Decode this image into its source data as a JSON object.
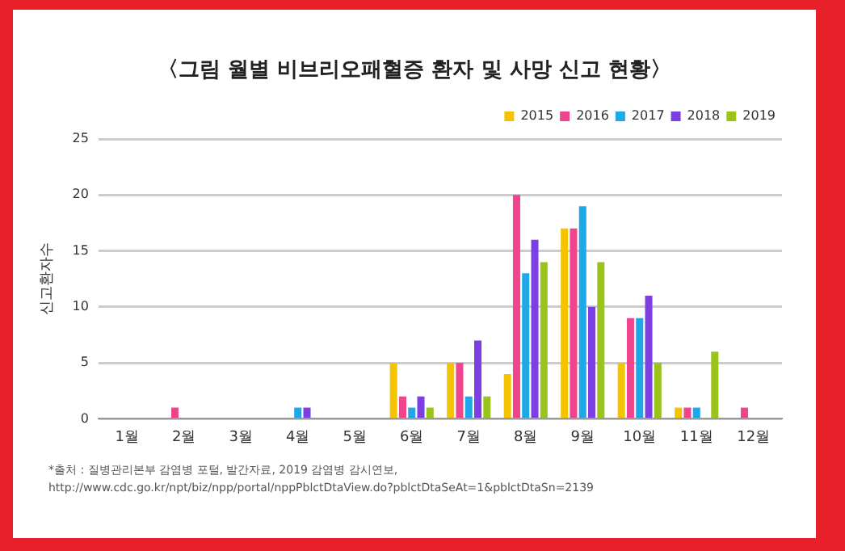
{
  "chart_data": {
    "type": "bar",
    "title": "〈그림 월별 비브리오패혈증 환자 및 사망 신고 현황〉",
    "ylabel": "신고환자수",
    "categories": [
      "1월",
      "2월",
      "3월",
      "4월",
      "5월",
      "6월",
      "7월",
      "8월",
      "9월",
      "10월",
      "11월",
      "12월"
    ],
    "series": [
      {
        "name": "2015",
        "color": "#f5c400",
        "values": [
          0,
          0,
          0,
          0,
          0,
          5,
          5,
          4,
          17,
          5,
          1,
          0
        ]
      },
      {
        "name": "2016",
        "color": "#f0448c",
        "values": [
          0,
          1,
          0,
          0,
          0,
          2,
          5,
          20,
          17,
          9,
          1,
          1
        ]
      },
      {
        "name": "2017",
        "color": "#1ea8e8",
        "values": [
          0,
          0,
          0,
          1,
          0,
          1,
          2,
          13,
          19,
          9,
          1,
          0
        ]
      },
      {
        "name": "2018",
        "color": "#7b3fe4",
        "values": [
          0,
          0,
          0,
          1,
          0,
          2,
          7,
          16,
          10,
          11,
          0,
          0
        ]
      },
      {
        "name": "2019",
        "color": "#9ac31c",
        "values": [
          0,
          0,
          0,
          0,
          0,
          1,
          2,
          14,
          14,
          5,
          6,
          0
        ]
      }
    ],
    "ylim": [
      0,
      25
    ],
    "yticks": [
      0,
      5,
      10,
      15,
      20,
      25
    ],
    "grid": "y",
    "legend": "top right",
    "annotations": [
      "*출처 : 질병관리본부 감염병 포털, 발간자료, 2019 감염병 감시연보,",
      "http://www.cdc.go.kr/npt/biz/npp/portal/nppPblctDtaView.do?pblctDtaSeAt=1&pblctDtaSn=2139"
    ]
  }
}
